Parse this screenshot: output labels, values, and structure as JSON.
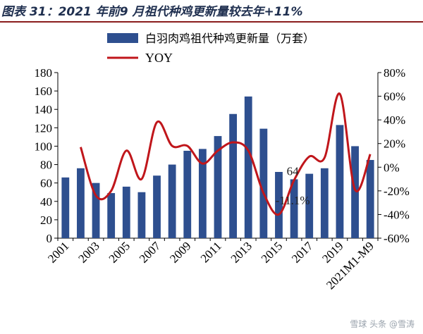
{
  "title": "图表 31：2021 年前9 月祖代种鸡更新量较去年+11%",
  "watermark": "雪球 头条 @雪涛",
  "chart_data": {
    "type": "bar",
    "categories": [
      "2001",
      "2002",
      "2003",
      "2004",
      "2005",
      "2006",
      "2007",
      "2008",
      "2009",
      "2010",
      "2011",
      "2012",
      "2013",
      "2014",
      "2015",
      "2016",
      "2017",
      "2018",
      "2019",
      "2020",
      "2021M1-M9"
    ],
    "x_tick_labels": [
      "2001",
      "2003",
      "2005",
      "2007",
      "2009",
      "2011",
      "2013",
      "2015",
      "2017",
      "2019",
      "2021M1-M9"
    ],
    "series": [
      {
        "name": "白羽肉鸡祖代种鸡更新量（万套）",
        "type": "bar",
        "axis": "left",
        "color": "#2e4f8f",
        "values": [
          66,
          76,
          60,
          49,
          56,
          50,
          68,
          80,
          95,
          97,
          111,
          135,
          154,
          119,
          72,
          64,
          70,
          76,
          123,
          100,
          85
        ]
      },
      {
        "name": "YOY",
        "type": "line",
        "axis": "right",
        "color": "#c0161b",
        "values": [
          null,
          17,
          -24,
          -20,
          14,
          -10,
          38,
          18,
          18,
          3,
          14,
          21,
          14,
          -22,
          -40,
          -11,
          9,
          8,
          62,
          -19,
          11
        ]
      }
    ],
    "annotations": [
      {
        "text": "64",
        "category": "2016",
        "axis": "left",
        "value": 64
      },
      {
        "text": "-11.1%",
        "category": "2016",
        "axis": "right",
        "value": -11.1
      }
    ],
    "ylim_left": [
      0,
      180
    ],
    "yticks_left": [
      "0",
      "20",
      "40",
      "60",
      "80",
      "100",
      "120",
      "140",
      "160",
      "180"
    ],
    "ylim_right": [
      -60,
      80
    ],
    "yticks_right": [
      "-60%",
      "-40%",
      "-20%",
      "0%",
      "20%",
      "40%",
      "60%",
      "80%"
    ],
    "grid": false,
    "legend_position": "top"
  }
}
